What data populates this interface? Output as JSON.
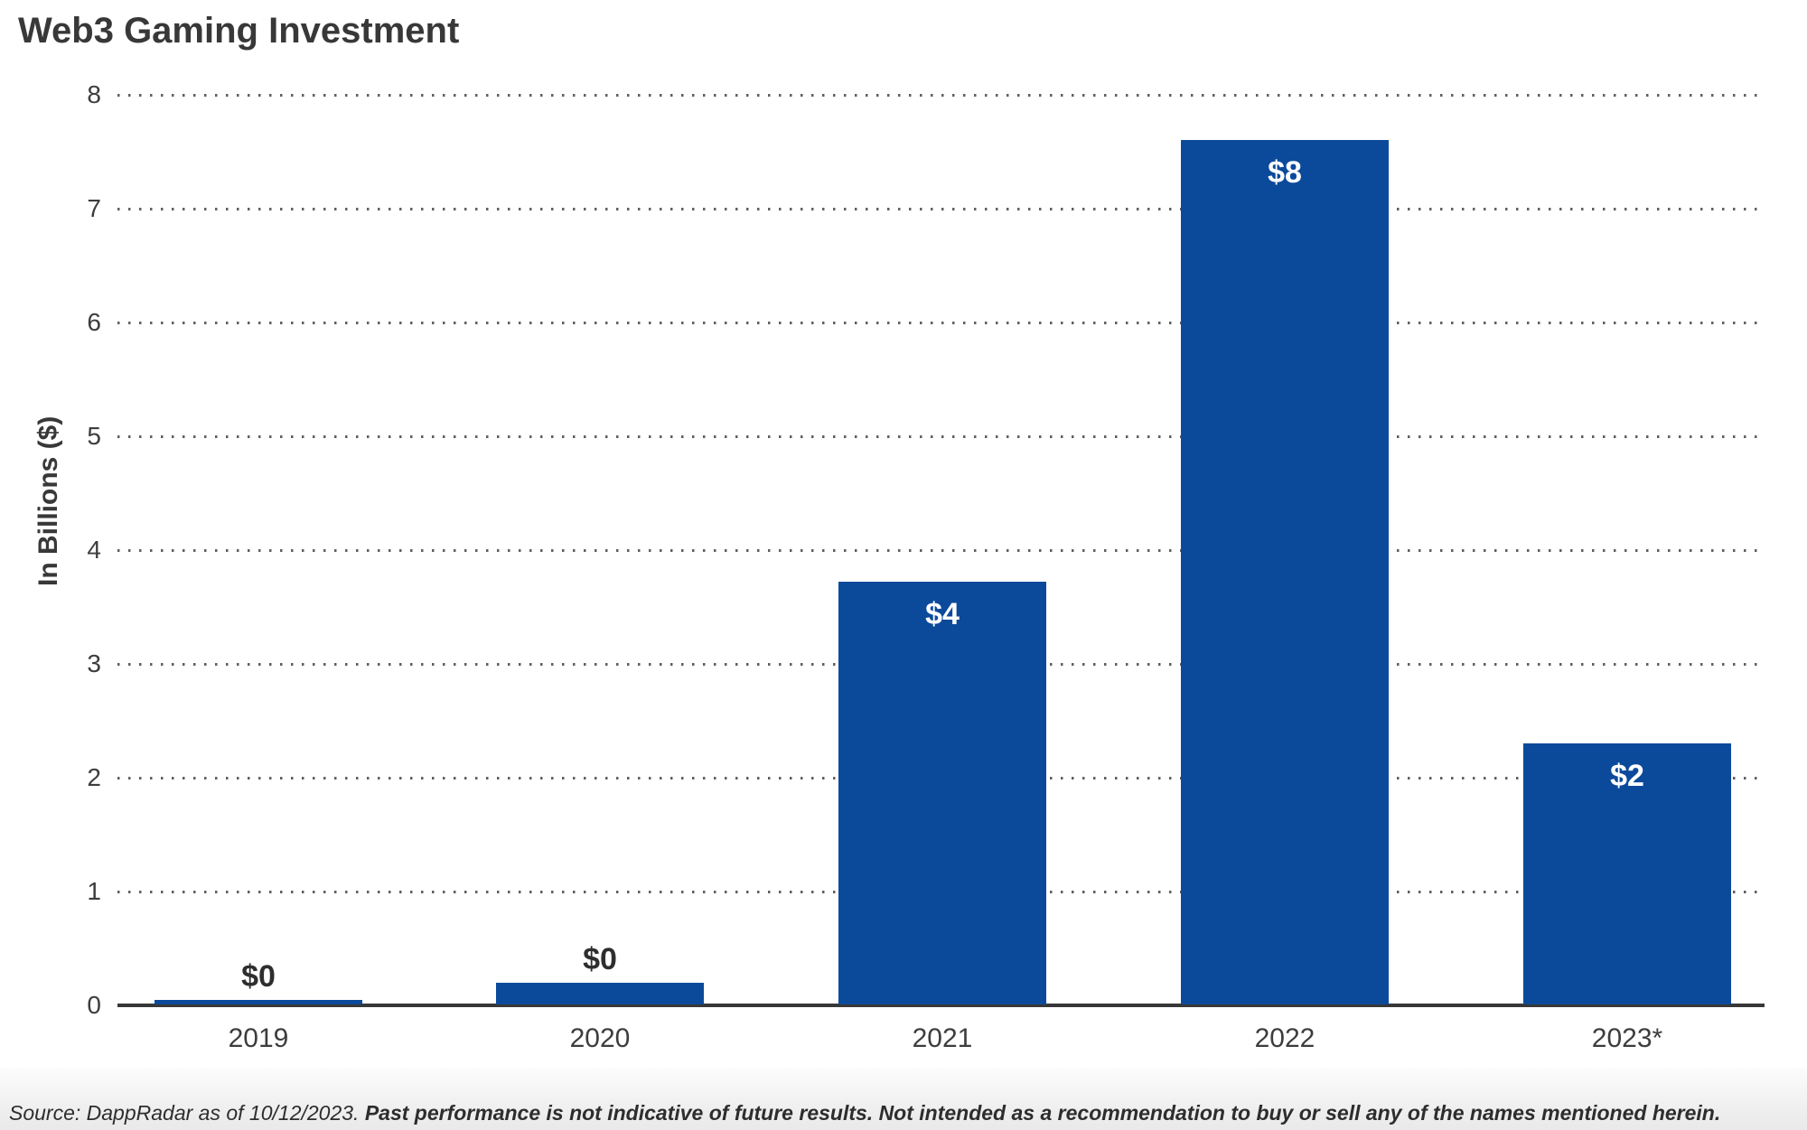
{
  "title": "Web3 Gaming Investment",
  "chart_data": {
    "type": "bar",
    "title": "Web3 Gaming Investment",
    "categories": [
      "2019",
      "2020",
      "2021",
      "2022",
      "2023*"
    ],
    "values": [
      0.05,
      0.2,
      3.72,
      7.6,
      2.3
    ],
    "bar_labels": [
      "$0",
      "$0",
      "$4",
      "$8",
      "$2"
    ],
    "bar_label_positions": [
      "above",
      "above",
      "inside",
      "inside",
      "inside"
    ],
    "xlabel": "",
    "ylabel": "In Billions ($)",
    "ylim": [
      0,
      8
    ],
    "yticks": [
      0,
      1,
      2,
      3,
      4,
      5,
      6,
      7,
      8
    ],
    "grid": "horizontal-dotted",
    "legend": "none",
    "colors": {
      "bar": "#0b4a9b",
      "label_inside": "#ffffff",
      "label_above": "#2e2e2e",
      "axis": "#383838",
      "grid_dot": "#606060",
      "tick_text": "#3d3d3d",
      "title_text": "#383838"
    }
  },
  "footer": {
    "source": "Source: DappRadar as of 10/12/2023.",
    "disclaimer": "Past performance is not indicative of future results. Not intended as a recommendation to buy or sell any of the names mentioned herein."
  }
}
